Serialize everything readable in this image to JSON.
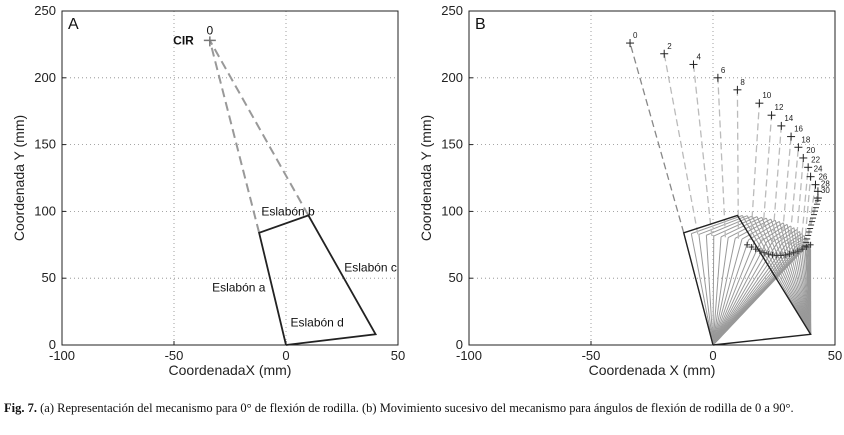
{
  "caption": {
    "label": "Fig. 7.",
    "text": " (a) Representación del mecanismo para 0° de flexión de rodilla. (b) Movimiento sucesivo del mecanismo para ángulos de flexión de rodilla de 0 a 90°."
  },
  "chart_data": [
    {
      "type": "line",
      "panel_label": "A",
      "xlabel": "CoordenadaX (mm)",
      "ylabel": "Coordenada Y (mm)",
      "xlim": [
        -100,
        50
      ],
      "ylim": [
        0,
        250
      ],
      "xticks": [
        -100,
        -50,
        0,
        50
      ],
      "yticks": [
        0,
        50,
        100,
        150,
        200,
        250
      ],
      "grid": true,
      "colors": {
        "links": "#222222",
        "dashed": "#999999"
      },
      "mechanism": [
        [
          0,
          0
        ],
        [
          -12,
          84
        ],
        [
          10,
          97
        ],
        [
          40,
          8
        ],
        [
          0,
          0
        ]
      ],
      "dashed_lines": [
        [
          [
            -12,
            84
          ],
          [
            -34,
            228
          ]
        ],
        [
          [
            10,
            97
          ],
          [
            -34,
            228
          ]
        ]
      ],
      "cir": {
        "x": -34,
        "y": 228,
        "label": "CIR",
        "index_label": "0"
      },
      "annotations": [
        {
          "text": "Eslabón b",
          "x": -11,
          "y": 97
        },
        {
          "text": "Eslabón a",
          "x": -33,
          "y": 40
        },
        {
          "text": "Eslabón c",
          "x": 26,
          "y": 55
        },
        {
          "text": "Eslabón d",
          "x": 2,
          "y": 14
        }
      ]
    },
    {
      "type": "line",
      "panel_label": "B",
      "xlabel": "Coordenada X (mm)",
      "ylabel": "Coordenada Y (mm)",
      "xlim": [
        -100,
        50
      ],
      "ylim": [
        0,
        250
      ],
      "xticks": [
        -100,
        -50,
        0,
        50
      ],
      "yticks": [
        0,
        50,
        100,
        150,
        200,
        250
      ],
      "grid": true,
      "colors": {
        "links": "#222222",
        "sweep": "#999999",
        "dashed": "#bbbbbb"
      },
      "cir_points": [
        {
          "label": "0",
          "x": -34,
          "y": 226
        },
        {
          "label": "2",
          "x": -20,
          "y": 218
        },
        {
          "label": "4",
          "x": -8,
          "y": 210
        },
        {
          "label": "6",
          "x": 2,
          "y": 200
        },
        {
          "label": "8",
          "x": 10,
          "y": 191
        },
        {
          "label": "10",
          "x": 19,
          "y": 181
        },
        {
          "label": "12",
          "x": 24,
          "y": 172
        },
        {
          "label": "14",
          "x": 28,
          "y": 164
        },
        {
          "label": "16",
          "x": 32,
          "y": 156
        },
        {
          "label": "18",
          "x": 35,
          "y": 148
        },
        {
          "label": "20",
          "x": 37,
          "y": 140
        },
        {
          "label": "22",
          "x": 39,
          "y": 133
        },
        {
          "label": "24",
          "x": 40,
          "y": 126
        },
        {
          "label": "26",
          "x": 42,
          "y": 120
        },
        {
          "label": "28",
          "x": 43,
          "y": 115
        },
        {
          "label": "30",
          "x": 43,
          "y": 110
        }
      ]
    }
  ]
}
